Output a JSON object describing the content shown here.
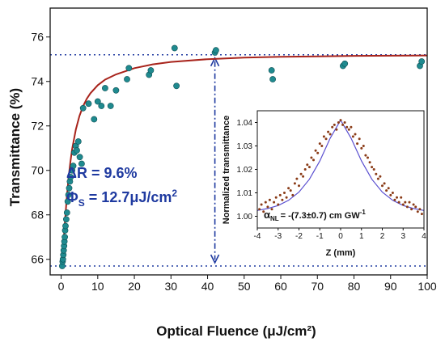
{
  "chart_data": [
    {
      "type": "scatter",
      "xlabel": "Optical  Fluence (μJ/cm²)",
      "ylabel": "Transmittance (%)",
      "xlim": [
        -3,
        100
      ],
      "ylim": [
        65.3,
        77.3
      ],
      "xticks": [
        0,
        10,
        20,
        30,
        40,
        50,
        60,
        70,
        80,
        90,
        100
      ],
      "yticks": [
        66,
        68,
        70,
        72,
        74,
        76
      ],
      "colors": {
        "points": "#1f8a8f",
        "fit": "#a8241c",
        "guides": "#1f3aa0",
        "annotation": "#1f3aa0"
      },
      "series": [
        {
          "kind": "measured",
          "x": [
            0.3,
            0.4,
            0.5,
            0.6,
            0.7,
            0.8,
            0.9,
            1.0,
            1.1,
            1.2,
            1.4,
            1.6,
            1.8,
            2.0,
            2.2,
            2.4,
            2.6,
            3.0,
            3.3,
            3.6,
            4.0,
            4.3,
            4.7,
            5.1,
            5.6,
            6.0,
            7.5,
            9.0,
            10.0,
            11.0,
            12.0,
            13.5,
            15.0,
            18.0,
            18.5,
            24.0,
            24.5,
            31.0,
            31.5,
            42.0,
            42.3,
            57.5,
            57.8,
            77.0,
            77.5,
            98.0,
            98.5
          ],
          "y": [
            65.7,
            65.9,
            66.0,
            66.2,
            66.4,
            66.6,
            66.8,
            67.0,
            67.3,
            67.5,
            67.8,
            68.1,
            68.6,
            68.9,
            69.2,
            69.5,
            69.7,
            70.0,
            70.2,
            70.8,
            71.1,
            70.9,
            71.3,
            70.6,
            70.3,
            72.8,
            73.0,
            72.3,
            73.1,
            72.9,
            73.7,
            72.9,
            73.6,
            74.1,
            74.6,
            74.3,
            74.5,
            75.5,
            73.8,
            75.3,
            75.4,
            74.5,
            74.1,
            74.7,
            74.8,
            74.7,
            74.9
          ]
        },
        {
          "kind": "fit",
          "x": [
            0.3,
            0.6,
            1,
            1.5,
            2,
            2.5,
            3,
            4,
            5,
            6,
            7,
            8,
            10,
            12,
            15,
            20,
            25,
            30,
            40,
            50,
            60,
            70,
            80,
            90,
            100
          ],
          "y": [
            65.75,
            66.58,
            67.6,
            68.71,
            69.62,
            70.35,
            70.95,
            71.83,
            72.45,
            72.89,
            73.22,
            73.47,
            73.83,
            74.08,
            74.32,
            74.6,
            74.77,
            74.88,
            75.0,
            75.07,
            75.11,
            75.13,
            75.15,
            75.16,
            75.17
          ]
        }
      ],
      "reference_lines": {
        "y_max": 75.2,
        "y_min": 65.7,
        "x_fluence": 42
      },
      "annotations": {
        "delta_r": "ΔR = 9.6%",
        "phi_prefix": "Φ",
        "phi_sub": "S",
        "phi_value": " = 12.7μJ/cm",
        "phi_sup": "2"
      }
    },
    {
      "type": "scatter",
      "xlabel": "Z (mm)",
      "ylabel": "Normalized transmittance",
      "xlim": [
        -4,
        4
      ],
      "ylim": [
        0.995,
        1.045
      ],
      "xticks": [
        -4,
        -3,
        -2,
        -1,
        0,
        1,
        2,
        3,
        4
      ],
      "yticks": [
        1.0,
        1.01,
        1.02,
        1.03,
        1.04
      ],
      "colors": {
        "points": "#8a3b17",
        "fit": "#5a4fd0"
      },
      "series": [
        {
          "kind": "measured",
          "x": [
            -3.9,
            -3.8,
            -3.7,
            -3.6,
            -3.5,
            -3.4,
            -3.3,
            -3.2,
            -3.1,
            -3.0,
            -2.9,
            -2.8,
            -2.7,
            -2.6,
            -2.5,
            -2.4,
            -2.3,
            -2.2,
            -2.1,
            -2.0,
            -1.9,
            -1.8,
            -1.7,
            -1.6,
            -1.5,
            -1.4,
            -1.3,
            -1.2,
            -1.1,
            -1.0,
            -0.9,
            -0.8,
            -0.7,
            -0.6,
            -0.5,
            -0.4,
            -0.3,
            -0.2,
            -0.1,
            0.0,
            0.1,
            0.2,
            0.3,
            0.4,
            0.5,
            0.6,
            0.7,
            0.8,
            0.9,
            1.0,
            1.1,
            1.2,
            1.3,
            1.4,
            1.5,
            1.6,
            1.7,
            1.8,
            1.9,
            2.0,
            2.1,
            2.2,
            2.3,
            2.4,
            2.5,
            2.6,
            2.7,
            2.8,
            2.9,
            3.0,
            3.1,
            3.2,
            3.3,
            3.4,
            3.5,
            3.6,
            3.7,
            3.8,
            3.9
          ],
          "y": [
            1.003,
            1.005,
            1.002,
            1.006,
            1.004,
            1.007,
            1.003,
            1.006,
            1.008,
            1.005,
            1.009,
            1.007,
            1.01,
            1.008,
            1.012,
            1.011,
            1.009,
            1.014,
            1.016,
            1.013,
            1.018,
            1.017,
            1.02,
            1.022,
            1.021,
            1.025,
            1.024,
            1.028,
            1.027,
            1.031,
            1.03,
            1.034,
            1.033,
            1.036,
            1.035,
            1.038,
            1.039,
            1.037,
            1.04,
            1.041,
            1.039,
            1.04,
            1.038,
            1.037,
            1.038,
            1.034,
            1.035,
            1.031,
            1.033,
            1.029,
            1.03,
            1.026,
            1.025,
            1.023,
            1.021,
            1.02,
            1.018,
            1.016,
            1.017,
            1.013,
            1.014,
            1.011,
            1.012,
            1.009,
            1.01,
            1.007,
            1.008,
            1.006,
            1.008,
            1.005,
            1.006,
            1.004,
            1.006,
            1.003,
            1.005,
            1.004,
            1.002,
            1.003,
            1.001
          ]
        },
        {
          "kind": "fit",
          "x": [
            -4,
            -3.5,
            -3,
            -2.5,
            -2,
            -1.5,
            -1,
            -0.5,
            0,
            0.5,
            1,
            1.5,
            2,
            2.5,
            3,
            3.5,
            4
          ],
          "y": [
            1.0025,
            1.0033,
            1.0046,
            1.0068,
            1.0103,
            1.0158,
            1.0236,
            1.0333,
            1.041,
            1.0333,
            1.0236,
            1.0158,
            1.0103,
            1.0068,
            1.0046,
            1.0033,
            1.0025
          ]
        }
      ],
      "annotations": {
        "alpha_prefix": "α",
        "alpha_sub": "NL",
        "alpha_value": "= -(7.3±0.7) cm GW",
        "alpha_sup": "-1"
      }
    }
  ]
}
